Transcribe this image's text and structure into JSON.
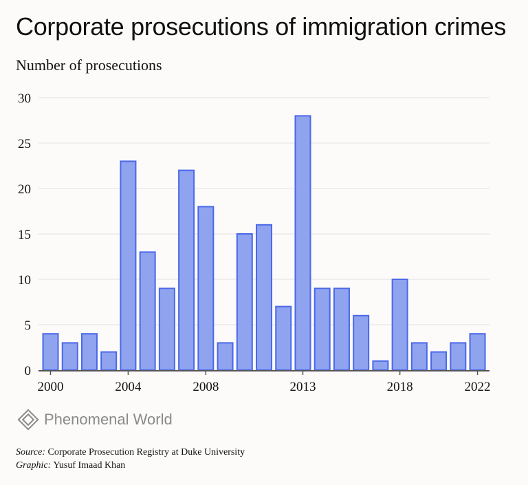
{
  "title": "Corporate prosecutions of immigration crimes",
  "brand": "Phenomenal World",
  "footer": {
    "source_label": "Source:",
    "source": "Corporate Prosecution Registry at Duke University",
    "graphic_label": "Graphic:",
    "graphic": "Yusuf Imaad Khan"
  },
  "chart_data": {
    "type": "bar",
    "title": "Corporate prosecutions of immigration crimes",
    "ylabel": "Number of prosecutions",
    "xlabel": "",
    "categories": [
      2000,
      2001,
      2002,
      2003,
      2004,
      2005,
      2006,
      2007,
      2008,
      2009,
      2010,
      2011,
      2012,
      2013,
      2014,
      2015,
      2016,
      2017,
      2018,
      2019,
      2020,
      2021,
      2022
    ],
    "values": [
      4,
      3,
      4,
      2,
      23,
      13,
      9,
      22,
      18,
      3,
      15,
      16,
      7,
      28,
      9,
      9,
      6,
      1,
      10,
      3,
      2,
      3,
      4
    ],
    "ylim": [
      0,
      30
    ],
    "yticks": [
      0,
      5,
      10,
      15,
      20,
      25,
      30
    ],
    "xticks": [
      2000,
      2004,
      2008,
      2013,
      2018,
      2022
    ],
    "grid": true,
    "colors": {
      "fill": "#8fa3ef",
      "stroke": "#4a68e8"
    }
  }
}
